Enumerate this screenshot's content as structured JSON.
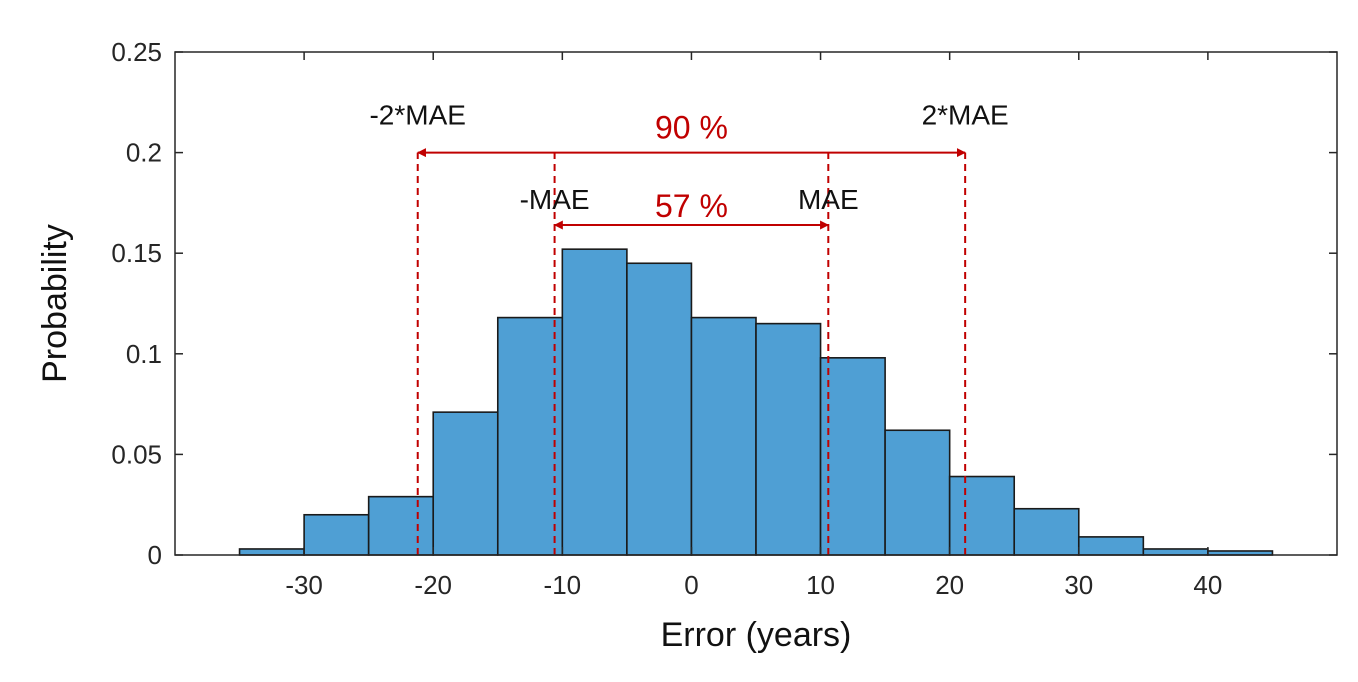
{
  "chart_data": {
    "type": "bar",
    "title": "",
    "xlabel": "Error (years)",
    "ylabel": "Probability",
    "xlim": [
      -40,
      50
    ],
    "ylim": [
      0,
      0.25
    ],
    "xticks": [
      -30,
      -20,
      -10,
      0,
      10,
      20,
      30,
      40
    ],
    "xtick_labels": [
      "-30",
      "-20",
      "-10",
      "0",
      "10",
      "20",
      "30",
      "40"
    ],
    "yticks": [
      0,
      0.05,
      0.1,
      0.15,
      0.2,
      0.25
    ],
    "ytick_labels": [
      "0",
      "0.05",
      "0.1",
      "0.15",
      "0.2",
      "0.25"
    ],
    "bin_width": 5,
    "bins": [
      {
        "x0": -35,
        "x1": -30,
        "value": 0.003
      },
      {
        "x0": -30,
        "x1": -25,
        "value": 0.02
      },
      {
        "x0": -25,
        "x1": -20,
        "value": 0.029
      },
      {
        "x0": -20,
        "x1": -15,
        "value": 0.071
      },
      {
        "x0": -15,
        "x1": -10,
        "value": 0.118
      },
      {
        "x0": -10,
        "x1": -5,
        "value": 0.152
      },
      {
        "x0": -5,
        "x1": 0,
        "value": 0.145
      },
      {
        "x0": 0,
        "x1": 5,
        "value": 0.118
      },
      {
        "x0": 5,
        "x1": 10,
        "value": 0.115
      },
      {
        "x0": 10,
        "x1": 15,
        "value": 0.098
      },
      {
        "x0": 15,
        "x1": 20,
        "value": 0.062
      },
      {
        "x0": 20,
        "x1": 25,
        "value": 0.039
      },
      {
        "x0": 25,
        "x1": 30,
        "value": 0.023
      },
      {
        "x0": 30,
        "x1": 35,
        "value": 0.009
      },
      {
        "x0": 35,
        "x1": 40,
        "value": 0.003
      },
      {
        "x0": 40,
        "x1": 45,
        "value": 0.002
      }
    ],
    "bar_color": "#4f9fd4",
    "bar_edge_color": "#1a1a1a",
    "annotation_color": "#c00000",
    "reference_lines": [
      {
        "x": -21.2,
        "label": "-2*MAE",
        "label_y": 0.214
      },
      {
        "x": -10.6,
        "label": "-MAE",
        "label_y": 0.172
      },
      {
        "x": 10.6,
        "label": "MAE",
        "label_y": 0.172
      },
      {
        "x": 21.2,
        "label": "2*MAE",
        "label_y": 0.214
      }
    ],
    "ranges": [
      {
        "from": -21.2,
        "to": 21.2,
        "y": 0.2,
        "label": "90 %",
        "label_y": 0.207
      },
      {
        "from": -10.6,
        "to": 10.6,
        "y": 0.164,
        "label": "57 %",
        "label_y": 0.168
      }
    ],
    "grid": false,
    "legend": "none"
  }
}
